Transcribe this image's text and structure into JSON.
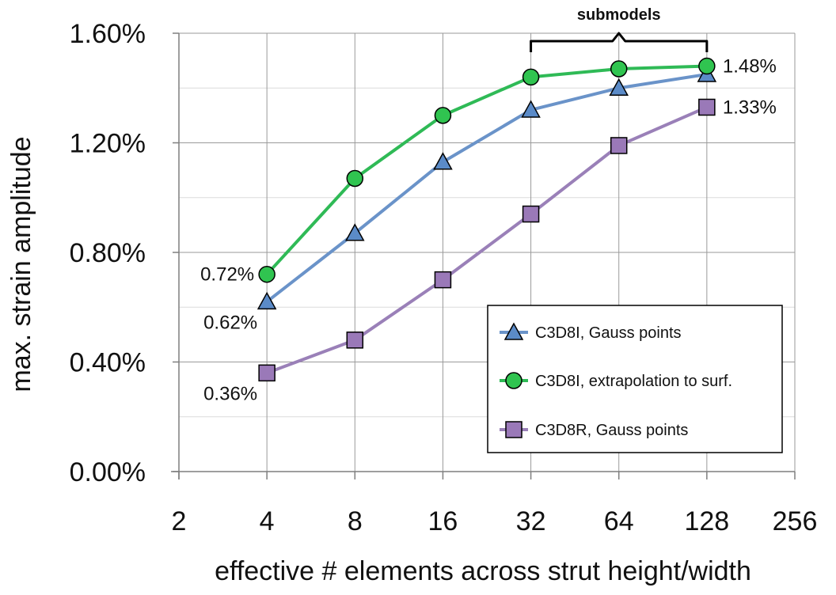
{
  "chart_data": {
    "type": "line",
    "x_scale": "log2",
    "xlabel": "effective # elements across strut height/width",
    "ylabel": "max. strain amplitude",
    "x_ticks": [
      2,
      4,
      8,
      16,
      32,
      64,
      128,
      256
    ],
    "x_tick_labels": [
      "2",
      "4",
      "8",
      "16",
      "32",
      "64",
      "128",
      "256"
    ],
    "xlim": [
      2,
      256
    ],
    "ylim": [
      0.0,
      1.6
    ],
    "y_ticks": [
      0.0,
      0.4,
      0.8,
      1.2,
      1.6
    ],
    "y_tick_labels": [
      "0.00%",
      "0.40%",
      "0.80%",
      "1.20%",
      "1.60%"
    ],
    "y_minor_gridlines": [
      0.2,
      0.6,
      1.0,
      1.4
    ],
    "grid": true,
    "x": [
      4,
      8,
      16,
      32,
      64,
      128
    ],
    "series": [
      {
        "name": "C3D8I, Gauss points",
        "marker": "triangle",
        "color": "#6a93c9",
        "marker_fill": "#5b8bc8",
        "values": [
          0.62,
          0.87,
          1.13,
          1.32,
          1.4,
          1.45
        ]
      },
      {
        "name": "C3D8I, extrapolation to surf.",
        "marker": "circle",
        "color": "#2fba56",
        "marker_fill": "#30c450",
        "values": [
          0.72,
          1.07,
          1.3,
          1.44,
          1.47,
          1.48
        ]
      },
      {
        "name": "C3D8R, Gauss points",
        "marker": "square",
        "color": "#9a80b8",
        "marker_fill": "#9a79b8",
        "values": [
          0.36,
          0.48,
          0.7,
          0.94,
          1.19,
          1.33
        ]
      }
    ],
    "data_labels": [
      {
        "text": "0.72%",
        "series": 1,
        "index": 0,
        "side": "left"
      },
      {
        "text": "0.62%",
        "series": 0,
        "index": 0,
        "side": "below-left"
      },
      {
        "text": "0.36%",
        "series": 2,
        "index": 0,
        "side": "below-left"
      },
      {
        "text": "1.48%",
        "series": 1,
        "index": 5,
        "side": "right"
      },
      {
        "text": "1.33%",
        "series": 2,
        "index": 5,
        "side": "right"
      }
    ],
    "annotation": {
      "text": "submodels",
      "type": "brace",
      "x_from": 32,
      "x_to": 128
    },
    "legend_position": "bottom-right"
  }
}
